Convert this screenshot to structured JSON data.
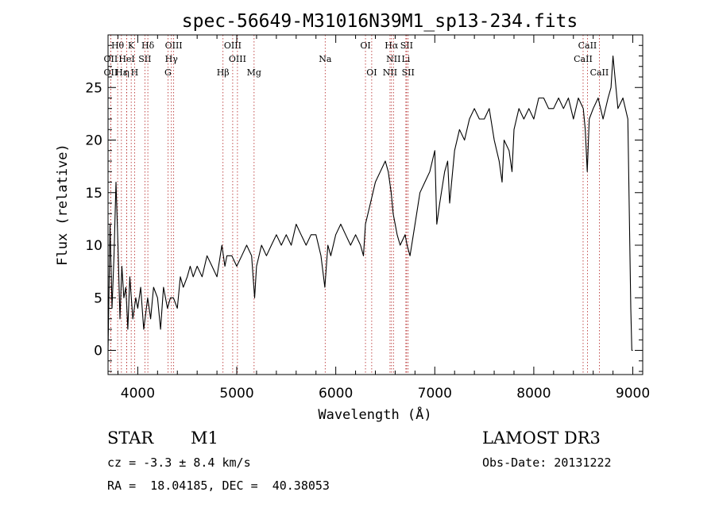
{
  "chart_data": {
    "type": "line",
    "title": "spec-56649-M31016N39M1_sp13-234.fits",
    "xlabel": "Wavelength (Å)",
    "ylabel": "Flux (relative)",
    "xlim": [
      3700,
      9100
    ],
    "ylim": [
      -2.3,
      30
    ],
    "xticks": [
      4000,
      5000,
      6000,
      7000,
      8000,
      9000
    ],
    "yticks": [
      0,
      5,
      10,
      15,
      20,
      25
    ],
    "x_minor_step": 200,
    "y_minor_step": 1,
    "grid": false,
    "line_color": "#000000",
    "marker_color": "#b22222",
    "spectrum": {
      "name": "flux",
      "x": [
        3700,
        3720,
        3740,
        3760,
        3780,
        3800,
        3820,
        3840,
        3860,
        3880,
        3900,
        3920,
        3950,
        3980,
        4000,
        4030,
        4060,
        4100,
        4130,
        4160,
        4200,
        4230,
        4260,
        4300,
        4330,
        4360,
        4400,
        4430,
        4460,
        4500,
        4530,
        4560,
        4600,
        4650,
        4700,
        4750,
        4800,
        4850,
        4880,
        4900,
        4950,
        5000,
        5050,
        5100,
        5150,
        5180,
        5200,
        5250,
        5300,
        5350,
        5400,
        5450,
        5500,
        5550,
        5600,
        5650,
        5700,
        5750,
        5800,
        5850,
        5890,
        5920,
        5950,
        6000,
        6050,
        6100,
        6150,
        6200,
        6250,
        6280,
        6300,
        6350,
        6400,
        6450,
        6500,
        6530,
        6560,
        6580,
        6600,
        6620,
        6650,
        6700,
        6720,
        6750,
        6800,
        6850,
        6900,
        6950,
        7000,
        7020,
        7050,
        7100,
        7130,
        7150,
        7200,
        7250,
        7300,
        7350,
        7400,
        7450,
        7500,
        7550,
        7600,
        7650,
        7680,
        7700,
        7750,
        7780,
        7800,
        7850,
        7900,
        7950,
        8000,
        8050,
        8100,
        8150,
        8200,
        8250,
        8300,
        8350,
        8400,
        8450,
        8500,
        8520,
        8540,
        8560,
        8600,
        8650,
        8700,
        8750,
        8780,
        8800,
        8850,
        8900,
        8950,
        8980,
        8990,
        9000
      ],
      "values": [
        0,
        12,
        4,
        9,
        16,
        10,
        3,
        8,
        5,
        6,
        2,
        7,
        3,
        5,
        4,
        6,
        2,
        5,
        3,
        6,
        5,
        2,
        6,
        4,
        5,
        5,
        4,
        7,
        6,
        7,
        8,
        7,
        8,
        7,
        9,
        8,
        7,
        10,
        8,
        9,
        9,
        8,
        9,
        10,
        9,
        5,
        8,
        10,
        9,
        10,
        11,
        10,
        11,
        10,
        12,
        11,
        10,
        11,
        11,
        9,
        6,
        10,
        9,
        11,
        12,
        11,
        10,
        11,
        10,
        9,
        12,
        14,
        16,
        17,
        18,
        17,
        15,
        13,
        12,
        11,
        10,
        11,
        10,
        9,
        12,
        15,
        16,
        17,
        19,
        12,
        14,
        17,
        18,
        14,
        19,
        21,
        20,
        22,
        23,
        22,
        22,
        23,
        20,
        18,
        16,
        20,
        19,
        17,
        21,
        23,
        22,
        23,
        22,
        24,
        24,
        23,
        23,
        24,
        23,
        24,
        22,
        24,
        23,
        21,
        17,
        22,
        23,
        24,
        22,
        24,
        25,
        28,
        23,
        24,
        22,
        4,
        0,
        0
      ]
    },
    "line_markers": [
      {
        "label": "Hθ",
        "x": 3797,
        "row": 1
      },
      {
        "label": "K",
        "x": 3934,
        "row": 1
      },
      {
        "label": "Hδ",
        "x": 4102,
        "row": 1
      },
      {
        "label": "OIII",
        "x": 4363,
        "row": 1
      },
      {
        "label": "OIII",
        "x": 4959,
        "row": 1
      },
      {
        "label": "OI",
        "x": 6300,
        "row": 1
      },
      {
        "label": "Hα",
        "x": 6563,
        "row": 1
      },
      {
        "label": "SII",
        "x": 6716,
        "row": 1
      },
      {
        "label": "CaII",
        "x": 8542,
        "row": 1
      },
      {
        "label": "OII",
        "x": 3727,
        "row": 2
      },
      {
        "label": "HeI",
        "x": 3889,
        "row": 2
      },
      {
        "label": "SII",
        "x": 4072,
        "row": 2
      },
      {
        "label": "Hγ",
        "x": 4340,
        "row": 2
      },
      {
        "label": "OIII",
        "x": 5007,
        "row": 2
      },
      {
        "label": "Na",
        "x": 5893,
        "row": 2
      },
      {
        "label": "NII",
        "x": 6583,
        "row": 2
      },
      {
        "label": "Li",
        "x": 6708,
        "row": 2
      },
      {
        "label": "CaII",
        "x": 8498,
        "row": 2
      },
      {
        "label": "OII",
        "x": 3727,
        "row": 3
      },
      {
        "label": "Hε",
        "x": 3835,
        "row": 3
      },
      {
        "label": "η",
        "x": 3889,
        "row": 3
      },
      {
        "label": "H",
        "x": 3968,
        "row": 3
      },
      {
        "label": "G",
        "x": 4305,
        "row": 3
      },
      {
        "label": "Hβ",
        "x": 4861,
        "row": 3
      },
      {
        "label": "Mg",
        "x": 5175,
        "row": 3
      },
      {
        "label": "OI",
        "x": 6363,
        "row": 3
      },
      {
        "label": "NII",
        "x": 6548,
        "row": 3
      },
      {
        "label": "SII",
        "x": 6731,
        "row": 3
      },
      {
        "label": "CaII",
        "x": 8662,
        "row": 3
      }
    ]
  },
  "info": {
    "class": "STAR",
    "subclass": "M1",
    "survey": "LAMOST DR3",
    "redshift": "cz = -3.3 ± 8.4 km/s",
    "obs_date": "Obs-Date: 20131222",
    "coords": "RA =  18.04185, DEC =  40.38053"
  }
}
